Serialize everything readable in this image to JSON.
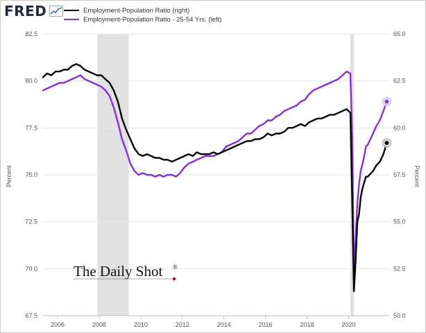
{
  "header": {
    "logo_text": "FRED"
  },
  "chart_data": {
    "type": "line",
    "title": "",
    "xlabel": "",
    "x_range": [
      2005.3,
      2021.95
    ],
    "x_ticks": [
      2006,
      2008,
      2010,
      2012,
      2014,
      2016,
      2018,
      2020
    ],
    "x_tick_labels": [
      "2006",
      "2008",
      "2010",
      "2012",
      "2014",
      "2016",
      "2018",
      "2020"
    ],
    "y_left": {
      "label": "Percent",
      "range": [
        67.5,
        82.5
      ],
      "ticks": [
        67.5,
        70.0,
        72.5,
        75.0,
        77.5,
        80.0,
        82.5
      ],
      "tick_labels": [
        "67.5",
        "70.0",
        "72.5",
        "75.0",
        "77.5",
        "80.0",
        "82.5"
      ]
    },
    "y_right": {
      "label": "Percent",
      "range": [
        50.0,
        65.0
      ],
      "ticks": [
        50.0,
        52.5,
        55.0,
        57.5,
        60.0,
        62.5,
        65.0
      ],
      "tick_labels": [
        "50.0",
        "52.5",
        "55.0",
        "57.5",
        "60.0",
        "62.5",
        "65.0"
      ]
    },
    "recessions": [
      {
        "start": 2007.92,
        "end": 2009.42
      },
      {
        "start": 2020.08,
        "end": 2020.25
      }
    ],
    "grid": "horizontal",
    "series": [
      {
        "name": "Employment-Population Ratio (right)",
        "axis": "right",
        "color": "#000000",
        "x": [
          2005.3,
          2005.5,
          2005.7,
          2005.9,
          2006.1,
          2006.3,
          2006.5,
          2006.7,
          2006.9,
          2007.1,
          2007.3,
          2007.5,
          2007.7,
          2007.9,
          2008.1,
          2008.3,
          2008.5,
          2008.7,
          2008.9,
          2009.1,
          2009.3,
          2009.5,
          2009.7,
          2009.9,
          2010.1,
          2010.3,
          2010.5,
          2010.7,
          2010.9,
          2011.1,
          2011.3,
          2011.5,
          2011.7,
          2011.9,
          2012.1,
          2012.3,
          2012.5,
          2012.7,
          2012.9,
          2013.1,
          2013.3,
          2013.5,
          2013.7,
          2013.9,
          2014.1,
          2014.3,
          2014.5,
          2014.7,
          2014.9,
          2015.1,
          2015.3,
          2015.5,
          2015.7,
          2015.9,
          2016.1,
          2016.3,
          2016.5,
          2016.7,
          2016.9,
          2017.1,
          2017.3,
          2017.5,
          2017.7,
          2017.9,
          2018.1,
          2018.3,
          2018.5,
          2018.7,
          2018.9,
          2019.1,
          2019.3,
          2019.5,
          2019.7,
          2019.9,
          2020.08,
          2020.17,
          2020.25,
          2020.33,
          2020.42,
          2020.5,
          2020.58,
          2020.67,
          2020.75,
          2020.83,
          2020.92,
          2021.0,
          2021.17,
          2021.33,
          2021.5,
          2021.67,
          2021.83
        ],
        "values": [
          62.7,
          62.9,
          62.8,
          63.0,
          63.0,
          63.1,
          63.1,
          63.3,
          63.4,
          63.3,
          63.1,
          63.0,
          62.9,
          62.8,
          62.8,
          62.6,
          62.4,
          62.0,
          61.4,
          60.5,
          59.9,
          59.4,
          58.9,
          58.6,
          58.5,
          58.6,
          58.5,
          58.4,
          58.4,
          58.3,
          58.3,
          58.2,
          58.3,
          58.4,
          58.5,
          58.6,
          58.5,
          58.7,
          58.6,
          58.6,
          58.6,
          58.7,
          58.6,
          58.7,
          58.8,
          58.9,
          59.0,
          59.1,
          59.2,
          59.3,
          59.3,
          59.4,
          59.4,
          59.5,
          59.7,
          59.6,
          59.7,
          59.7,
          59.8,
          60.0,
          60.0,
          60.1,
          60.2,
          60.1,
          60.3,
          60.4,
          60.5,
          60.5,
          60.6,
          60.7,
          60.7,
          60.8,
          60.9,
          61.0,
          60.8,
          56.0,
          51.3,
          52.8,
          55.0,
          55.4,
          56.3,
          56.8,
          57.1,
          57.4,
          57.4,
          57.5,
          57.7,
          58.0,
          58.2,
          58.6,
          59.2
        ]
      },
      {
        "name": "Employment-Population Ratio - 25-54 Yrs. (left)",
        "axis": "left",
        "color": "#8a2be2",
        "x": [
          2005.3,
          2005.5,
          2005.7,
          2005.9,
          2006.1,
          2006.3,
          2006.5,
          2006.7,
          2006.9,
          2007.1,
          2007.3,
          2007.5,
          2007.7,
          2007.9,
          2008.1,
          2008.3,
          2008.5,
          2008.7,
          2008.9,
          2009.1,
          2009.3,
          2009.5,
          2009.7,
          2009.9,
          2010.1,
          2010.3,
          2010.5,
          2010.7,
          2010.9,
          2011.1,
          2011.3,
          2011.5,
          2011.7,
          2011.9,
          2012.1,
          2012.3,
          2012.5,
          2012.7,
          2012.9,
          2013.1,
          2013.3,
          2013.5,
          2013.7,
          2013.9,
          2014.1,
          2014.3,
          2014.5,
          2014.7,
          2014.9,
          2015.1,
          2015.3,
          2015.5,
          2015.7,
          2015.9,
          2016.1,
          2016.3,
          2016.5,
          2016.7,
          2016.9,
          2017.1,
          2017.3,
          2017.5,
          2017.7,
          2017.9,
          2018.1,
          2018.3,
          2018.5,
          2018.7,
          2018.9,
          2019.1,
          2019.3,
          2019.5,
          2019.7,
          2019.9,
          2020.08,
          2020.17,
          2020.25,
          2020.33,
          2020.42,
          2020.5,
          2020.58,
          2020.67,
          2020.75,
          2020.83,
          2020.92,
          2021.0,
          2021.17,
          2021.33,
          2021.5,
          2021.67,
          2021.83
        ],
        "values": [
          79.5,
          79.6,
          79.7,
          79.8,
          79.9,
          79.9,
          80.0,
          80.1,
          80.2,
          80.3,
          80.1,
          80.0,
          79.9,
          79.8,
          79.7,
          79.5,
          79.2,
          78.6,
          77.8,
          76.9,
          76.3,
          75.6,
          75.2,
          75.0,
          75.1,
          75.0,
          75.0,
          74.9,
          75.0,
          74.9,
          75.0,
          75.0,
          74.9,
          75.1,
          75.4,
          75.6,
          75.7,
          75.8,
          75.9,
          76.0,
          76.0,
          76.0,
          76.1,
          76.2,
          76.5,
          76.6,
          76.7,
          76.8,
          77.0,
          77.2,
          77.2,
          77.4,
          77.6,
          77.7,
          77.9,
          77.9,
          78.1,
          78.2,
          78.4,
          78.5,
          78.6,
          78.7,
          78.9,
          79.0,
          79.3,
          79.5,
          79.6,
          79.7,
          79.8,
          79.9,
          80.0,
          80.1,
          80.3,
          80.5,
          80.4,
          77.0,
          69.7,
          71.5,
          73.5,
          74.5,
          75.2,
          75.6,
          76.0,
          76.5,
          76.6,
          76.8,
          77.2,
          77.6,
          77.9,
          78.4,
          78.9
        ]
      }
    ],
    "markers": [
      {
        "series": 0,
        "at": "last"
      },
      {
        "series": 1,
        "at": "last"
      }
    ]
  },
  "watermark": {
    "text": "The Daily Shot",
    "registered": "®",
    "dot_color": "#cc0000"
  }
}
